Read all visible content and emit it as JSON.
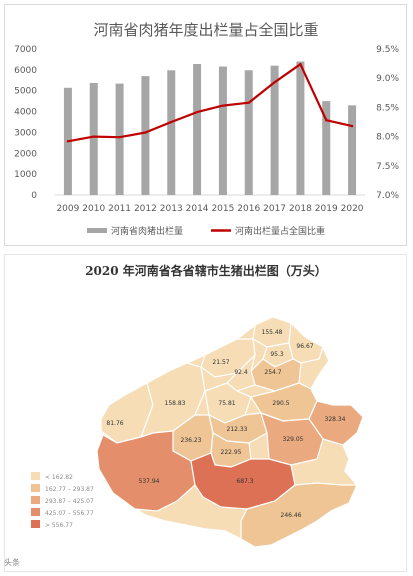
{
  "chart_data": [
    {
      "type": "bar+line",
      "title": "河南省肉猪年度出栏量占全国比重",
      "categories": [
        "2009",
        "2010",
        "2011",
        "2012",
        "2013",
        "2014",
        "2015",
        "2016",
        "2017",
        "2018",
        "2019",
        "2020"
      ],
      "series": [
        {
          "name": "河南省肉猪出栏量",
          "type": "bar",
          "axis": "left",
          "color": "#a6a6a6",
          "values": [
            5140,
            5370,
            5340,
            5700,
            5980,
            6280,
            6160,
            5980,
            6200,
            6400,
            4500,
            4300
          ]
        },
        {
          "name": "河南出栏量占全国比重",
          "type": "line",
          "axis": "right",
          "color": "#c00000",
          "values": [
            7.92,
            8.0,
            7.99,
            8.07,
            8.25,
            8.42,
            8.53,
            8.58,
            8.93,
            9.24,
            8.28,
            8.18
          ]
        }
      ],
      "y_left": {
        "min": 0,
        "max": 7000,
        "ticks": [
          "0",
          "1000",
          "2000",
          "3000",
          "4000",
          "5000",
          "6000",
          "7000"
        ]
      },
      "y_right": {
        "min": 7.0,
        "max": 9.5,
        "ticks": [
          "7.0%",
          "7.5%",
          "8.0%",
          "8.5%",
          "9.0%",
          "9.5%"
        ]
      },
      "legend": "bottom",
      "grid": false
    },
    {
      "type": "choropleth-map",
      "title": "2020 年河南省各省辖市生猪出栏图（万头）",
      "region_values": [
        "155.48",
        "95.3",
        "96.67",
        "254.7",
        "21.57",
        "92.4",
        "81.76",
        "158.83",
        "75.81",
        "290.5",
        "328.34",
        "212.33",
        "236.23",
        "222.95",
        "329.05",
        "537.94",
        "687.3",
        "246.46"
      ],
      "legend_bins": [
        {
          "label": "< 162.82",
          "color": "#f6ddb6"
        },
        {
          "label": "162.77 – 293.87",
          "color": "#efc596"
        },
        {
          "label": "293.87 – 425.07",
          "color": "#eaa97e"
        },
        {
          "label": "425.07 – 556.77",
          "color": "#e48e6b"
        },
        {
          "label": "> 556.77",
          "color": "#dd7156"
        }
      ]
    }
  ],
  "watermark": "头条"
}
